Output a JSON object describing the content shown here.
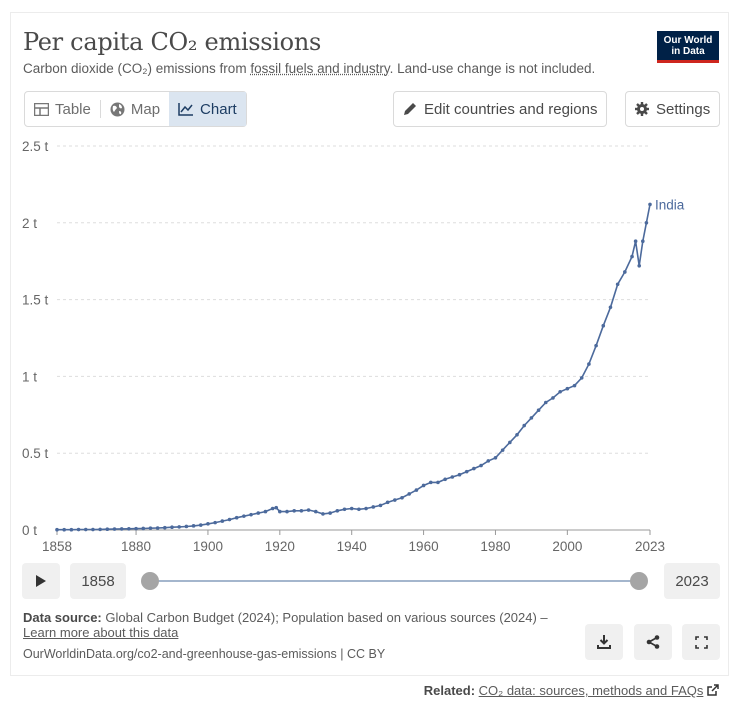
{
  "header": {
    "title": "Per capita CO₂ emissions",
    "subtitle_pre": "Carbon dioxide (CO₂) emissions from ",
    "subtitle_link": "fossil fuels and industry",
    "subtitle_post": ". Land-use change is not included.",
    "logo_line1": "Our World",
    "logo_line2": "in Data"
  },
  "toolbar": {
    "tabs": [
      "Table",
      "Map",
      "Chart"
    ],
    "active_tab": "Chart",
    "edit_label": "Edit countries and regions",
    "settings_label": "Settings"
  },
  "timeline": {
    "start_year": "1858",
    "end_year": "2023"
  },
  "footer": {
    "source_label": "Data source:",
    "source_text": "Global Carbon Budget (2024); Population based on various sources (2024) – ",
    "learn_more": "Learn more about this data",
    "url_line": "OurWorldinData.org/co2-and-greenhouse-gas-emissions | CC BY",
    "related_label": "Related:",
    "related_link": "CO₂ data: sources, methods and FAQs"
  },
  "colors": {
    "series": "#4c6a9c",
    "grid": "#dddddd",
    "brand": "#002147"
  },
  "chart_data": {
    "type": "line",
    "title": "Per capita CO₂ emissions",
    "xlabel": "",
    "ylabel": "",
    "xlim": [
      1858,
      2023
    ],
    "ylim": [
      0,
      2.5
    ],
    "y_ticks": [
      0,
      0.5,
      1,
      1.5,
      2,
      2.5
    ],
    "y_tick_labels": [
      "0 t",
      "0.5 t",
      "1 t",
      "1.5 t",
      "2 t",
      "2.5 t"
    ],
    "x_ticks": [
      1858,
      1880,
      1900,
      1920,
      1940,
      1960,
      1980,
      2000,
      2023
    ],
    "x_tick_labels": [
      "1858",
      "1880",
      "1900",
      "1920",
      "1940",
      "1960",
      "1980",
      "2000",
      "2023"
    ],
    "grid": true,
    "series": [
      {
        "name": "India",
        "x": [
          1858,
          1860,
          1862,
          1864,
          1866,
          1868,
          1870,
          1872,
          1874,
          1876,
          1878,
          1880,
          1882,
          1884,
          1886,
          1888,
          1890,
          1892,
          1894,
          1896,
          1898,
          1900,
          1902,
          1904,
          1906,
          1908,
          1910,
          1912,
          1914,
          1916,
          1918,
          1919,
          1920,
          1922,
          1924,
          1926,
          1928,
          1930,
          1932,
          1934,
          1936,
          1938,
          1940,
          1942,
          1944,
          1946,
          1948,
          1950,
          1952,
          1954,
          1956,
          1958,
          1960,
          1962,
          1964,
          1966,
          1968,
          1970,
          1972,
          1974,
          1976,
          1978,
          1980,
          1982,
          1984,
          1986,
          1988,
          1990,
          1992,
          1994,
          1996,
          1998,
          2000,
          2002,
          2004,
          2006,
          2008,
          2010,
          2012,
          2014,
          2016,
          2018,
          2019,
          2020,
          2021,
          2022,
          2023
        ],
        "values": [
          0.002,
          0.002,
          0.002,
          0.003,
          0.003,
          0.003,
          0.004,
          0.005,
          0.006,
          0.007,
          0.008,
          0.009,
          0.01,
          0.012,
          0.013,
          0.015,
          0.018,
          0.02,
          0.023,
          0.027,
          0.032,
          0.04,
          0.048,
          0.058,
          0.068,
          0.08,
          0.09,
          0.1,
          0.11,
          0.12,
          0.14,
          0.145,
          0.12,
          0.12,
          0.125,
          0.125,
          0.13,
          0.12,
          0.105,
          0.11,
          0.125,
          0.135,
          0.14,
          0.135,
          0.14,
          0.15,
          0.16,
          0.18,
          0.195,
          0.21,
          0.235,
          0.26,
          0.29,
          0.31,
          0.31,
          0.33,
          0.345,
          0.36,
          0.38,
          0.4,
          0.42,
          0.45,
          0.47,
          0.52,
          0.57,
          0.62,
          0.68,
          0.73,
          0.78,
          0.83,
          0.86,
          0.9,
          0.92,
          0.94,
          0.99,
          1.08,
          1.2,
          1.33,
          1.45,
          1.6,
          1.68,
          1.78,
          1.88,
          1.72,
          1.88,
          2.0,
          2.12
        ]
      }
    ]
  }
}
